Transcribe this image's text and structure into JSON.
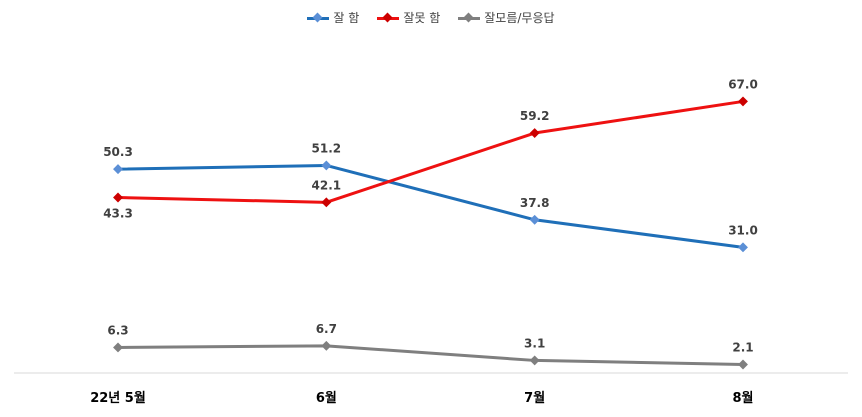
{
  "chart_data": {
    "type": "line",
    "categories": [
      "22년 5월",
      "6월",
      "7월",
      "8월"
    ],
    "series": [
      {
        "name": "잘 함",
        "color": "#1F6FB8",
        "marker_color": "#5B8FD6",
        "values": [
          50.3,
          51.2,
          37.8,
          31.0
        ],
        "labels": [
          "50.3",
          "51.2",
          "37.8",
          "31.0"
        ],
        "label_side": [
          "above",
          "above",
          "above",
          "above"
        ]
      },
      {
        "name": "잘못 함",
        "color": "#EE1111",
        "marker_color": "#CC0000",
        "values": [
          43.3,
          42.1,
          59.2,
          67.0
        ],
        "labels": [
          "43.3",
          "42.1",
          "59.2",
          "67.0"
        ],
        "label_side": [
          "below",
          "above",
          "above",
          "above"
        ]
      },
      {
        "name": "잘모름/무응답",
        "color": "#7F7F7F",
        "marker_color": "#7F7F7F",
        "values": [
          6.3,
          6.7,
          3.1,
          2.1
        ],
        "labels": [
          "6.3",
          "6.7",
          "3.1",
          "2.1"
        ],
        "label_side": [
          "above",
          "above",
          "above",
          "above"
        ]
      }
    ],
    "title": "",
    "xlabel": "",
    "ylabel": "",
    "ylim": [
      0,
      75
    ],
    "grid": false,
    "legend_position": "top"
  }
}
